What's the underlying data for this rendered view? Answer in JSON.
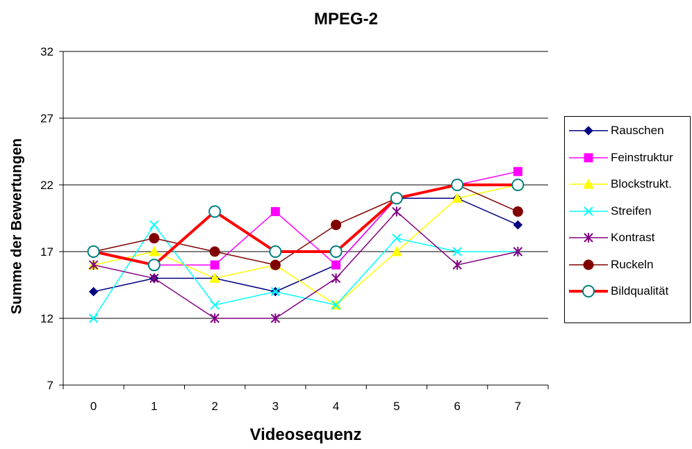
{
  "chart_data": {
    "type": "line",
    "title": "MPEG-2",
    "xlabel": "Videosequenz",
    "ylabel": "Summe der Bewertungen",
    "x": [
      0,
      1,
      2,
      3,
      4,
      5,
      6,
      7
    ],
    "ylim": [
      7,
      32
    ],
    "yticks": [
      7,
      12,
      17,
      22,
      27,
      32
    ],
    "grid": "horizontal",
    "legend_position": "right",
    "series": [
      {
        "name": "Rauschen",
        "color": "#000080",
        "marker": "diamond",
        "values": [
          14,
          15,
          15,
          14,
          16,
          21,
          21,
          19
        ]
      },
      {
        "name": "Feinstruktur",
        "color": "#ff00ff",
        "marker": "square",
        "values": [
          17,
          16,
          16,
          20,
          16,
          21,
          22,
          23
        ]
      },
      {
        "name": "Blockstrukt.",
        "color": "#ffff00",
        "marker": "triangle",
        "values": [
          16,
          17,
          15,
          16,
          13,
          17,
          21,
          22
        ]
      },
      {
        "name": "Streifen",
        "color": "#00ffff",
        "marker": "x",
        "values": [
          12,
          19,
          13,
          14,
          13,
          18,
          17,
          17
        ]
      },
      {
        "name": "Kontrast",
        "color": "#800080",
        "marker": "star",
        "values": [
          16,
          15,
          12,
          12,
          15,
          20,
          16,
          17
        ]
      },
      {
        "name": "Ruckeln",
        "color": "#800000",
        "marker": "circle",
        "values": [
          17,
          18,
          17,
          16,
          19,
          21,
          22,
          20
        ]
      },
      {
        "name": "Bildqualität",
        "color": "#ff0000",
        "marker": "open-circle",
        "marker_color": "#008080",
        "thick": true,
        "values": [
          17,
          16,
          20,
          17,
          17,
          21,
          22,
          22
        ]
      }
    ]
  }
}
